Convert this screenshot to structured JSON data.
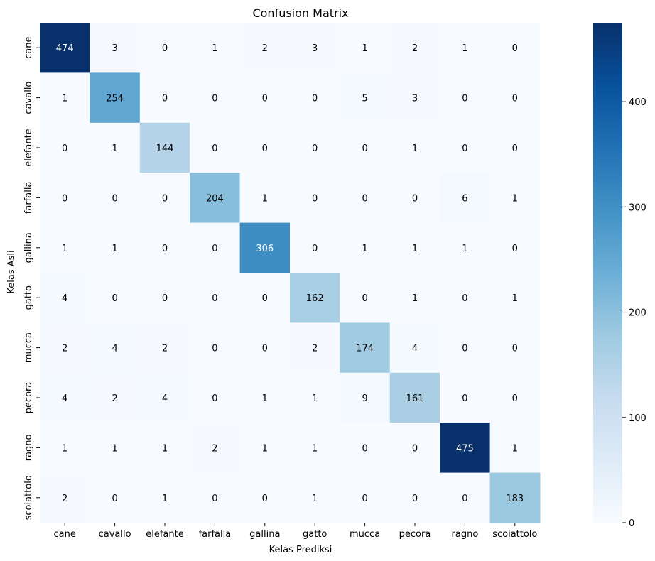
{
  "chart_data": {
    "type": "heatmap",
    "title": "Confusion Matrix",
    "xlabel": "Kelas Prediksi",
    "ylabel": "Kelas Asli",
    "x_categories": [
      "cane",
      "cavallo",
      "elefante",
      "farfalla",
      "gallina",
      "gatto",
      "mucca",
      "pecora",
      "ragno",
      "scoiattolo"
    ],
    "y_categories": [
      "cane",
      "cavallo",
      "elefante",
      "farfalla",
      "gallina",
      "gatto",
      "mucca",
      "pecora",
      "ragno",
      "scoiattolo"
    ],
    "values": [
      [
        474,
        3,
        0,
        1,
        2,
        3,
        1,
        2,
        1,
        0
      ],
      [
        1,
        254,
        0,
        0,
        0,
        0,
        5,
        3,
        0,
        0
      ],
      [
        0,
        1,
        144,
        0,
        0,
        0,
        0,
        1,
        0,
        0
      ],
      [
        0,
        0,
        0,
        204,
        1,
        0,
        0,
        0,
        6,
        1
      ],
      [
        1,
        1,
        0,
        0,
        306,
        0,
        1,
        1,
        1,
        0
      ],
      [
        4,
        0,
        0,
        0,
        0,
        162,
        0,
        1,
        0,
        1
      ],
      [
        2,
        4,
        2,
        0,
        0,
        2,
        174,
        4,
        0,
        0
      ],
      [
        4,
        2,
        4,
        0,
        1,
        1,
        9,
        161,
        0,
        0
      ],
      [
        1,
        1,
        1,
        2,
        1,
        1,
        0,
        0,
        475,
        1
      ],
      [
        2,
        0,
        1,
        0,
        0,
        1,
        0,
        0,
        0,
        183
      ]
    ],
    "colormap": "Blues",
    "colorbar": {
      "range": [
        0,
        475
      ],
      "ticks": [
        0,
        100,
        200,
        300,
        400
      ]
    }
  }
}
